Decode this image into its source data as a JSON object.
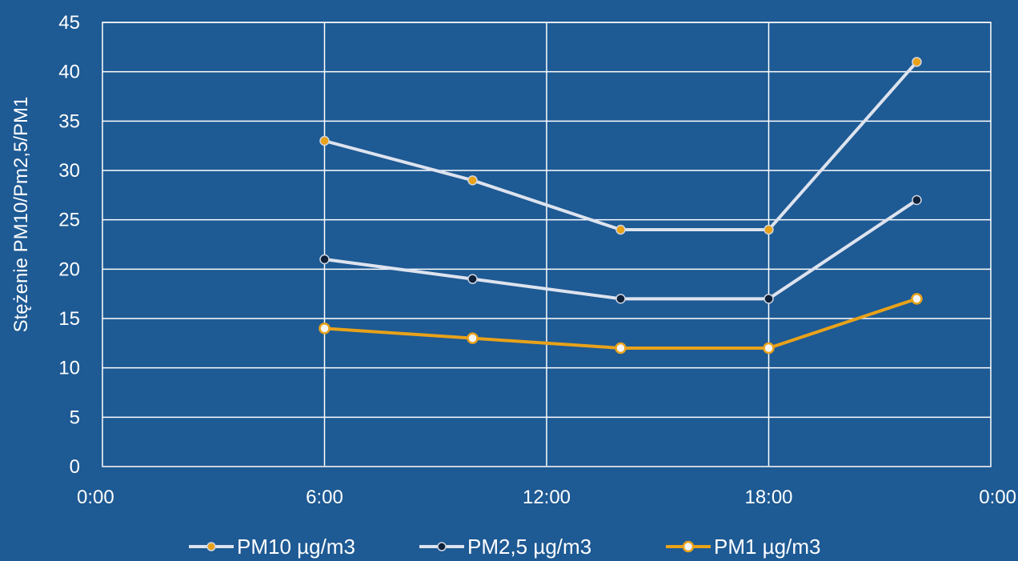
{
  "chart_data": {
    "type": "line",
    "title": "",
    "xlabel": "",
    "ylabel": "Stężenie PM10/Pm2,5/PM1",
    "x": [
      "6:00",
      "10:00",
      "14:00",
      "18:00",
      "22:00"
    ],
    "x_hours": [
      6,
      10,
      14,
      18,
      22
    ],
    "xlim": [
      0,
      24
    ],
    "x_ticks": [
      "0:00",
      "6:00",
      "12:00",
      "18:00",
      "0:00"
    ],
    "ylim": [
      0,
      45
    ],
    "y_ticks": [
      "0",
      "5",
      "10",
      "15",
      "20",
      "25",
      "30",
      "35",
      "40",
      "45"
    ],
    "grid": true,
    "legend_position": "bottom",
    "series": [
      {
        "name": "PM10 µg/m3",
        "values": [
          33,
          29,
          24,
          24,
          41
        ],
        "line_color": "#dde3ee",
        "marker": "filled",
        "marker_color": "#e8a21a"
      },
      {
        "name": "PM2,5 µg/m3",
        "values": [
          21,
          19,
          17,
          17,
          27
        ],
        "line_color": "#dde3ee",
        "marker": "filled",
        "marker_color": "#10213a"
      },
      {
        "name": "PM1 µg/m3",
        "values": [
          14,
          13,
          12,
          12,
          17
        ],
        "line_color": "#e8a21a",
        "marker": "hollow",
        "marker_color": "#e8a21a"
      }
    ]
  },
  "colors": {
    "background": "#1e5a94",
    "grid": "#ffffff",
    "text": "#ffffff"
  }
}
